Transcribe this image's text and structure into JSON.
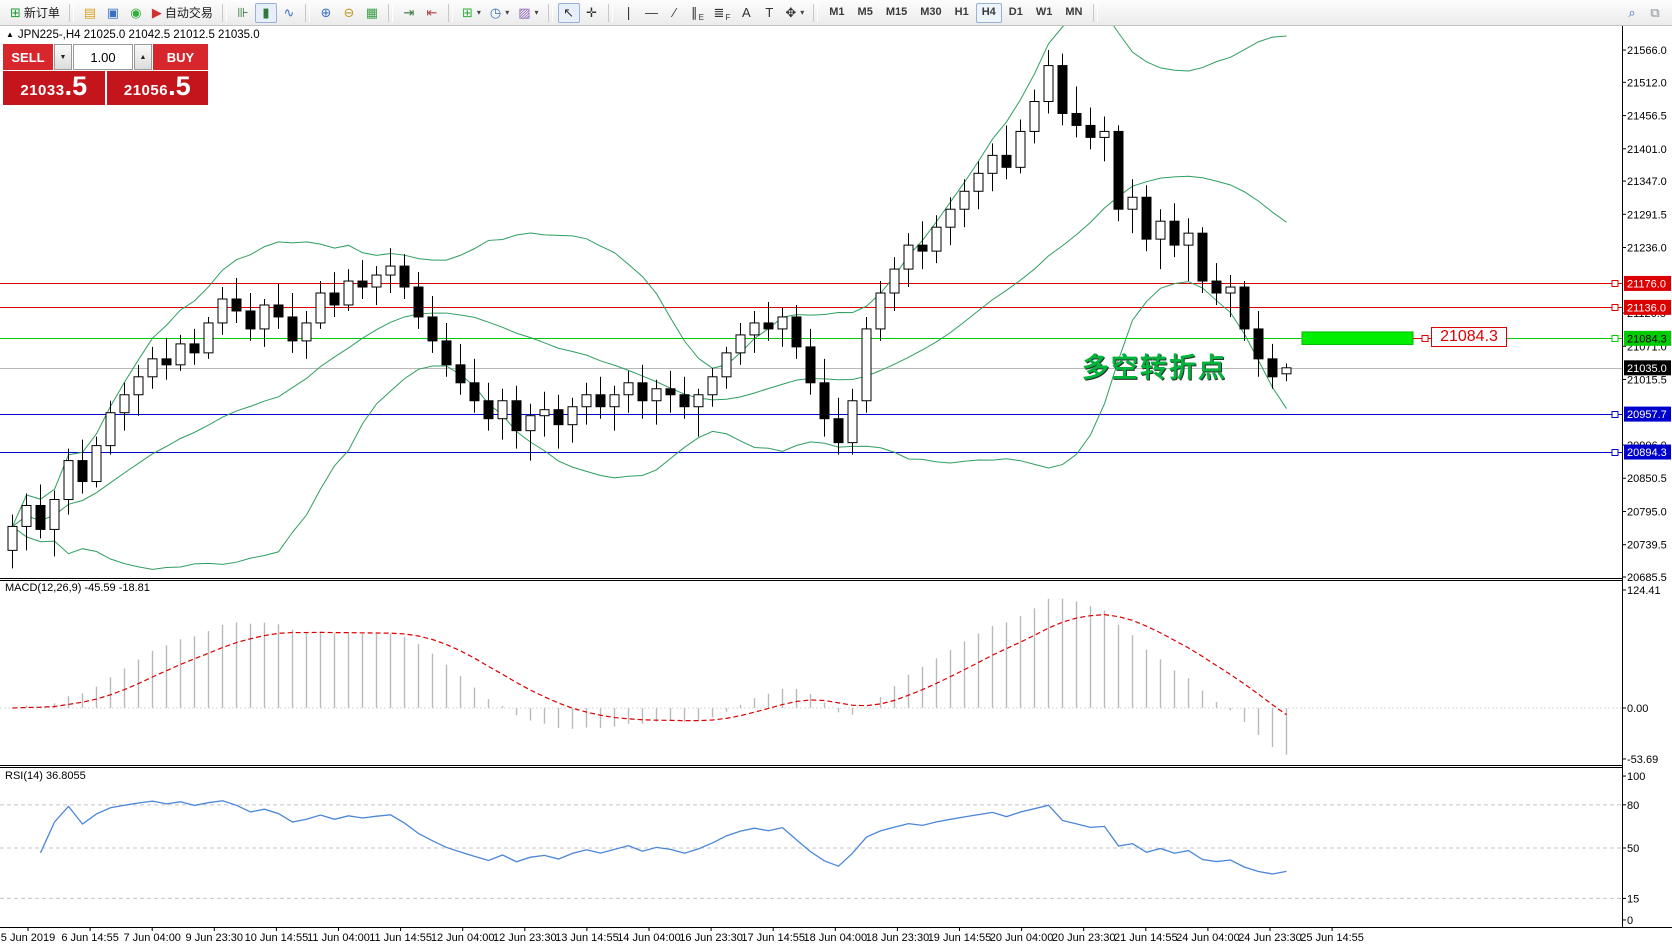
{
  "toolbar": {
    "items": [
      {
        "name": "new-order-button",
        "glyph": "⊞",
        "glyph_color": "#1f9d31",
        "label": "新订单"
      },
      {
        "type": "sep"
      },
      {
        "name": "profiles-icon",
        "glyph": "▤",
        "glyph_color": "#d9a422"
      },
      {
        "name": "terminal-icon",
        "glyph": "▣",
        "glyph_color": "#3a6fc4"
      },
      {
        "name": "signals-icon",
        "glyph": "◉",
        "glyph_color": "#2fae3a"
      },
      {
        "name": "autotrading-button",
        "glyph": "▶",
        "glyph_color": "#cf3030",
        "label": "自动交易"
      },
      {
        "type": "sep"
      },
      {
        "name": "bar-chart-button",
        "glyph": "⊪",
        "glyph_color": "#35763a"
      },
      {
        "name": "candlestick-chart-button",
        "glyph": "▮",
        "glyph_color": "#35763a",
        "pressed": true
      },
      {
        "name": "line-chart-button",
        "glyph": "∿",
        "glyph_color": "#3a6fc4"
      },
      {
        "type": "sep"
      },
      {
        "name": "zoom-in-button",
        "glyph": "⊕",
        "glyph_color": "#3a6fc4"
      },
      {
        "name": "zoom-out-button",
        "glyph": "⊖",
        "glyph_color": "#c09a25"
      },
      {
        "name": "tile-windows-button",
        "glyph": "▦",
        "glyph_color": "#3aa048"
      },
      {
        "type": "sep"
      },
      {
        "name": "auto-scroll-button",
        "glyph": "⇥",
        "glyph_color": "#35763a"
      },
      {
        "name": "chart-shift-button",
        "glyph": "⇤",
        "glyph_color": "#b04040"
      },
      {
        "type": "sep"
      },
      {
        "name": "indicators-button",
        "glyph": "⊞",
        "glyph_color": "#2fae3a",
        "dropdown": true
      },
      {
        "name": "periods-button",
        "glyph": "◷",
        "glyph_color": "#3a6fc4",
        "dropdown": true
      },
      {
        "name": "templates-button",
        "glyph": "▨",
        "glyph_color": "#8a62b5",
        "dropdown": true
      },
      {
        "type": "sep"
      },
      {
        "name": "cursor-button",
        "glyph": "↖",
        "glyph_color": "#333",
        "pressed": true
      },
      {
        "name": "crosshair-button",
        "glyph": "✛",
        "glyph_color": "#333"
      },
      {
        "type": "sep"
      },
      {
        "name": "vertical-line-button",
        "glyph": "❘",
        "glyph_color": "#333"
      },
      {
        "name": "horizontal-line-button",
        "glyph": "―",
        "glyph_color": "#333"
      },
      {
        "name": "trendline-button",
        "glyph": "∕",
        "glyph_color": "#333"
      },
      {
        "name": "equidistant-channel-button",
        "glyph": "∥",
        "glyph_color": "#333",
        "sub": "E"
      },
      {
        "name": "fibonacci-button",
        "glyph": "≣",
        "glyph_color": "#333",
        "sub": "F"
      },
      {
        "name": "text-button",
        "glyph": "A",
        "glyph_color": "#333"
      },
      {
        "name": "text-label-button",
        "glyph": "T",
        "glyph_color": "#333"
      },
      {
        "name": "arrows-button",
        "glyph": "✥",
        "glyph_color": "#333",
        "dropdown": true
      },
      {
        "type": "sep"
      },
      {
        "name": "timeframe-m1-button",
        "tf": "M1"
      },
      {
        "name": "timeframe-m5-button",
        "tf": "M5"
      },
      {
        "name": "timeframe-m15-button",
        "tf": "M15"
      },
      {
        "name": "timeframe-m30-button",
        "tf": "M30"
      },
      {
        "name": "timeframe-h1-button",
        "tf": "H1"
      },
      {
        "name": "timeframe-h4-button",
        "tf": "H4",
        "pressed": true
      },
      {
        "name": "timeframe-d1-button",
        "tf": "D1"
      },
      {
        "name": "timeframe-w1-button",
        "tf": "W1"
      },
      {
        "name": "timeframe-mn-button",
        "tf": "MN"
      },
      {
        "type": "sep"
      },
      {
        "type": "spacer"
      },
      {
        "name": "search-icon",
        "glyph": "⌕",
        "glyph_color": "#3a6fc4"
      },
      {
        "name": "chat-icon",
        "glyph": "⧉",
        "glyph_color": "#8a8f98"
      }
    ],
    "selected_timeframe": "H4"
  },
  "chart": {
    "expand_icon_glyph": "▲",
    "info_line": "JPN225-,H4  21025.0 21042.5 21012.5 21035.0",
    "symbol": "JPN225-",
    "period": "H4",
    "ohlc_display": {
      "open": "21025.0",
      "high": "21042.5",
      "low": "21012.5",
      "close": "21035.0"
    },
    "trade_panel": {
      "sell_label": "SELL",
      "buy_label": "BUY",
      "volume": "1.00",
      "spinner_up": "▲",
      "spinner_down": "▼",
      "sell_price_main": "21033",
      "sell_price_frac": ".5",
      "buy_price_main": "21056",
      "buy_price_frac": ".5"
    },
    "annotation": {
      "text": "多空转折点",
      "color": "#00b43c"
    },
    "price_tag": {
      "label": "21084.3",
      "color": "#dd0000"
    }
  },
  "chart_data": {
    "type": "candlestick",
    "title": "JPN225-,H4",
    "ylim": [
      20685.5,
      21602.8
    ],
    "y_ticks": [
      21566.0,
      21512.0,
      21456.5,
      21401.0,
      21347.0,
      21291.5,
      21236.0,
      21126.5,
      21071.0,
      21015.5,
      20906.0,
      20850.5,
      20795.0,
      20739.5,
      20685.5
    ],
    "x_labels": [
      "5 Jun 2019",
      "6 Jun 14:55",
      "7 Jun 04:00",
      "9 Jun 23:30",
      "10 Jun 14:55",
      "11 Jun 04:00",
      "11 Jun 14:55",
      "12 Jun 04:00",
      "12 Jun 23:30",
      "13 Jun 14:55",
      "14 Jun 04:00",
      "16 Jun 23:30",
      "17 Jun 14:55",
      "18 Jun 04:00",
      "18 Jun 23:30",
      "19 Jun 14:55",
      "20 Jun 04:00",
      "20 Jun 23:30",
      "21 Jun 14:55",
      "24 Jun 04:00",
      "24 Jun 23:30",
      "25 Jun 14:55"
    ],
    "candles": [
      [
        20730,
        20790,
        20700,
        20770
      ],
      [
        20770,
        20825,
        20730,
        20805
      ],
      [
        20805,
        20840,
        20750,
        20765
      ],
      [
        20765,
        20830,
        20720,
        20815
      ],
      [
        20815,
        20900,
        20790,
        20880
      ],
      [
        20880,
        20915,
        20825,
        20845
      ],
      [
        20845,
        20920,
        20835,
        20905
      ],
      [
        20905,
        20980,
        20890,
        20960
      ],
      [
        20960,
        21010,
        20930,
        20990
      ],
      [
        20990,
        21040,
        20955,
        21020
      ],
      [
        21020,
        21070,
        21000,
        21050
      ],
      [
        21050,
        21085,
        21015,
        21040
      ],
      [
        21040,
        21090,
        21030,
        21075
      ],
      [
        21075,
        21100,
        21040,
        21060
      ],
      [
        21060,
        21120,
        21050,
        21110
      ],
      [
        21110,
        21170,
        21090,
        21150
      ],
      [
        21150,
        21185,
        21110,
        21130
      ],
      [
        21130,
        21160,
        21080,
        21100
      ],
      [
        21100,
        21150,
        21070,
        21140
      ],
      [
        21140,
        21175,
        21100,
        21120
      ],
      [
        21120,
        21160,
        21060,
        21080
      ],
      [
        21080,
        21130,
        21050,
        21110
      ],
      [
        21110,
        21180,
        21100,
        21160
      ],
      [
        21160,
        21195,
        21120,
        21140
      ],
      [
        21140,
        21200,
        21130,
        21180
      ],
      [
        21180,
        21215,
        21150,
        21170
      ],
      [
        21170,
        21205,
        21140,
        21190
      ],
      [
        21190,
        21235,
        21160,
        21205
      ],
      [
        21205,
        21225,
        21150,
        21170
      ],
      [
        21170,
        21195,
        21100,
        21120
      ],
      [
        21120,
        21155,
        21060,
        21080
      ],
      [
        21080,
        21110,
        21020,
        21040
      ],
      [
        21040,
        21075,
        20990,
        21010
      ],
      [
        21010,
        21050,
        20960,
        20980
      ],
      [
        20980,
        21010,
        20930,
        20950
      ],
      [
        20950,
        21000,
        20915,
        20980
      ],
      [
        20980,
        21005,
        20900,
        20930
      ],
      [
        20930,
        20975,
        20880,
        20955
      ],
      [
        20955,
        20995,
        20920,
        20965
      ],
      [
        20965,
        20990,
        20900,
        20940
      ],
      [
        20940,
        20985,
        20910,
        20970
      ],
      [
        20970,
        21010,
        20940,
        20990
      ],
      [
        20990,
        21020,
        20950,
        20970
      ],
      [
        20970,
        21005,
        20930,
        20990
      ],
      [
        20990,
        21030,
        20960,
        21010
      ],
      [
        21010,
        21040,
        20950,
        20980
      ],
      [
        20980,
        21015,
        20940,
        21000
      ],
      [
        21000,
        21030,
        20960,
        20990
      ],
      [
        20990,
        21020,
        20950,
        20970
      ],
      [
        20970,
        21000,
        20920,
        20990
      ],
      [
        20990,
        21035,
        20970,
        21020
      ],
      [
        21020,
        21070,
        21000,
        21060
      ],
      [
        21060,
        21110,
        21040,
        21090
      ],
      [
        21090,
        21130,
        21060,
        21110
      ],
      [
        21110,
        21145,
        21080,
        21100
      ],
      [
        21100,
        21135,
        21070,
        21120
      ],
      [
        21120,
        21140,
        21050,
        21070
      ],
      [
        21070,
        21100,
        20990,
        21010
      ],
      [
        21010,
        21050,
        20920,
        20950
      ],
      [
        20950,
        20985,
        20890,
        20910
      ],
      [
        20910,
        21000,
        20890,
        20980
      ],
      [
        20980,
        21120,
        20960,
        21100
      ],
      [
        21100,
        21180,
        21080,
        21160
      ],
      [
        21160,
        21220,
        21130,
        21200
      ],
      [
        21200,
        21260,
        21170,
        21240
      ],
      [
        21240,
        21280,
        21200,
        21230
      ],
      [
        21230,
        21290,
        21210,
        21270
      ],
      [
        21270,
        21320,
        21240,
        21300
      ],
      [
        21300,
        21350,
        21270,
        21330
      ],
      [
        21330,
        21380,
        21300,
        21360
      ],
      [
        21360,
        21410,
        21330,
        21390
      ],
      [
        21390,
        21440,
        21350,
        21370
      ],
      [
        21370,
        21450,
        21360,
        21430
      ],
      [
        21430,
        21500,
        21410,
        21480
      ],
      [
        21480,
        21566,
        21460,
        21540
      ],
      [
        21540,
        21560,
        21440,
        21460
      ],
      [
        21460,
        21505,
        21420,
        21440
      ],
      [
        21440,
        21470,
        21400,
        21420
      ],
      [
        21420,
        21455,
        21380,
        21430
      ],
      [
        21430,
        21440,
        21280,
        21300
      ],
      [
        21300,
        21350,
        21260,
        21320
      ],
      [
        21320,
        21340,
        21230,
        21250
      ],
      [
        21250,
        21300,
        21200,
        21280
      ],
      [
        21280,
        21310,
        21220,
        21240
      ],
      [
        21240,
        21285,
        21180,
        21260
      ],
      [
        21260,
        21270,
        21160,
        21180
      ],
      [
        21180,
        21210,
        21140,
        21160
      ],
      [
        21160,
        21190,
        21120,
        21170
      ],
      [
        21170,
        21180,
        21080,
        21100
      ],
      [
        21100,
        21130,
        21020,
        21050
      ],
      [
        21050,
        21075,
        21000,
        21020
      ],
      [
        21025,
        21042.5,
        21012.5,
        21035
      ]
    ],
    "candle_colors": {
      "up_fill": "#ffffff",
      "down_fill": "#000000",
      "border": "#000000"
    },
    "bollinger": {
      "period": 20,
      "deviation": 2,
      "color": "#2e9e60"
    },
    "levels": [
      {
        "price": 21176.0,
        "label": "21176.0",
        "color": "#dd0000",
        "text_color": "#ffffff"
      },
      {
        "price": 21136.0,
        "label": "21136.0",
        "color": "#dd0000",
        "text_color": "#ffffff"
      },
      {
        "price": 21084.3,
        "label": "21084.3",
        "color": "#00cc00",
        "text_color": "#000000"
      },
      {
        "price": 20957.7,
        "label": "20957.7",
        "color": "#0000cc",
        "text_color": "#ffffff"
      },
      {
        "price": 20894.3,
        "label": "20894.3",
        "color": "#0000cc",
        "text_color": "#ffffff"
      }
    ],
    "current_price": {
      "price": 21035.0,
      "label": "21035.0",
      "line_color": "#b8b8b8",
      "badge_color": "#000000"
    },
    "highlight_zone": {
      "price_top": 21095,
      "price_bottom": 21074,
      "x": 1302,
      "width": 111,
      "fill": "#00ee00",
      "stroke": "#00bb00"
    },
    "macd": {
      "label": "MACD(12,26,9) -45.59 -18.81",
      "fast": 12,
      "slow": 26,
      "signal": 9,
      "main_value": -45.59,
      "signal_value": -18.81,
      "y_ticks": [
        {
          "v": 124.41,
          "label": "124.41"
        },
        {
          "v": 0,
          "label": "0.00"
        },
        {
          "v": -53.69,
          "label": "-53.69"
        }
      ],
      "clamp": [
        -58,
        131
      ],
      "histogram_color": "#b9b9b9",
      "signal_color": "#dd0000"
    },
    "rsi": {
      "label": "RSI(14) 36.8055",
      "period": 14,
      "value": 36.8055,
      "y_ticks": [
        {
          "v": 100,
          "label": "100"
        },
        {
          "v": 80,
          "label": "80"
        },
        {
          "v": 50,
          "label": "50"
        },
        {
          "v": 15,
          "label": "15"
        },
        {
          "v": 0,
          "label": "0"
        }
      ],
      "levels": [
        80,
        50,
        15
      ],
      "color": "#4a86d8",
      "level_color": "#c4c4c4"
    }
  }
}
